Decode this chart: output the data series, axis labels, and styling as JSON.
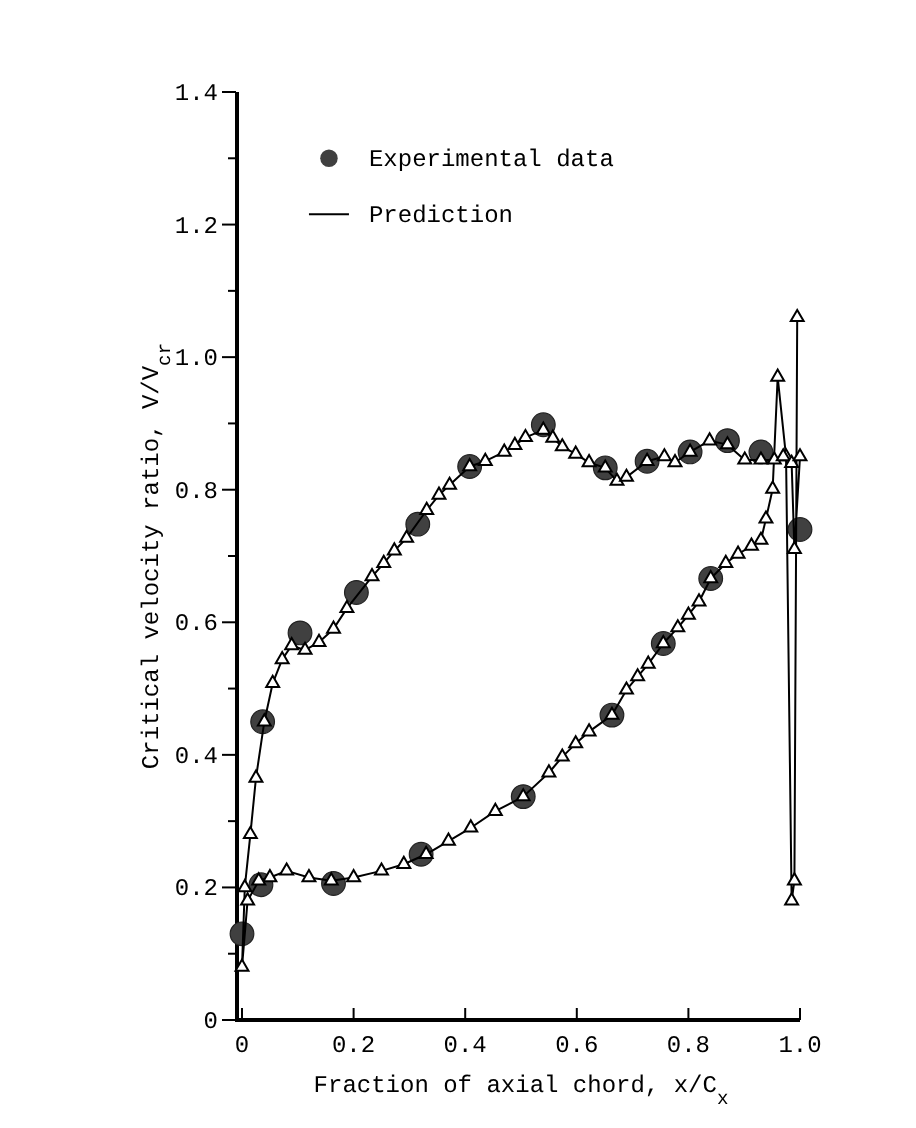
{
  "chart_data": {
    "type": "line",
    "xlabel": "Fraction of axial chord, x/C$_{x}$",
    "ylabel": "Critical velocity ratio, V/V$_{cr}$",
    "xlim": [
      0,
      1
    ],
    "ylim": [
      0,
      1.4
    ],
    "xticks": [
      0,
      0.2,
      0.4,
      0.6,
      0.8,
      {
        "value": 1,
        "label": "1.0"
      }
    ],
    "yticks": [
      0,
      {
        "value": 0.1,
        "label": null
      },
      0.2,
      {
        "value": 0.3,
        "label": null
      },
      0.4,
      {
        "value": 0.5,
        "label": null
      },
      0.6,
      {
        "value": 0.7,
        "label": null
      },
      0.8,
      {
        "value": 0.9,
        "label": null
      },
      {
        "value": 1,
        "label": "1.0"
      },
      {
        "value": 1.1,
        "label": null
      },
      1.2,
      {
        "value": 1.3,
        "label": null
      },
      1.4
    ],
    "grid": false,
    "legend": "top left",
    "series": [
      {
        "name": "Experimental data",
        "type": "scatter",
        "marker": "circle",
        "color": "#404040",
        "x": [
          0,
          0.037,
          0.104,
          0.205,
          0.315,
          0.408,
          0.54,
          0.651,
          0.726,
          0.803,
          0.87,
          0.93,
          0.034,
          0.164,
          0.321,
          0.504,
          0.663,
          0.755,
          0.84,
          1.0
        ],
        "values": [
          0.13,
          0.45,
          0.584,
          0.645,
          0.748,
          0.835,
          0.898,
          0.833,
          0.843,
          0.857,
          0.874,
          0.857,
          0.204,
          0.206,
          0.25,
          0.337,
          0.46,
          0.568,
          0.666,
          0.74
        ]
      },
      {
        "name": "Prediction",
        "marker": "triangle",
        "color": "#000000",
        "x": [
          0.995,
          0.99,
          0.985,
          0.975,
          0.96,
          0.951,
          0.939,
          0.93,
          0.913,
          0.889,
          0.867,
          0.84,
          0.819,
          0.8,
          0.781,
          0.755,
          0.728,
          0.709,
          0.689,
          0.663,
          0.622,
          0.598,
          0.574,
          0.55,
          0.504,
          0.454,
          0.41,
          0.37,
          0.33,
          0.29,
          0.25,
          0.2,
          0.16,
          0.12,
          0.08,
          0.05,
          0.03,
          0.01,
          0,
          0.005,
          0.015,
          0.025,
          0.04,
          0.055,
          0.072,
          0.089,
          0.113,
          0.138,
          0.164,
          0.188,
          0.233,
          0.254,
          0.273,
          0.295,
          0.331,
          0.353,
          0.372,
          0.408,
          0.436,
          0.47,
          0.489,
          0.508,
          0.54,
          0.557,
          0.574,
          0.598,
          0.622,
          0.651,
          0.672,
          0.689,
          0.726,
          0.757,
          0.776,
          0.803,
          0.838,
          0.87,
          0.901,
          0.93,
          0.954,
          0.97,
          0.985,
          0.99,
          1.0
        ],
        "values": [
          1.06,
          0.21,
          0.18,
          0.85,
          0.97,
          0.801,
          0.756,
          0.724,
          0.715,
          0.703,
          0.689,
          0.666,
          0.631,
          0.611,
          0.592,
          0.568,
          0.537,
          0.518,
          0.498,
          0.46,
          0.435,
          0.417,
          0.397,
          0.373,
          0.337,
          0.315,
          0.29,
          0.27,
          0.25,
          0.235,
          0.225,
          0.215,
          0.21,
          0.215,
          0.225,
          0.215,
          0.21,
          0.18,
          0.08,
          0.2,
          0.28,
          0.365,
          0.45,
          0.508,
          0.544,
          0.565,
          0.558,
          0.57,
          0.59,
          0.621,
          0.669,
          0.689,
          0.708,
          0.727,
          0.769,
          0.792,
          0.807,
          0.835,
          0.843,
          0.857,
          0.867,
          0.879,
          0.89,
          0.878,
          0.865,
          0.854,
          0.841,
          0.833,
          0.813,
          0.819,
          0.843,
          0.85,
          0.841,
          0.857,
          0.874,
          0.868,
          0.845,
          0.845,
          0.845,
          0.85,
          0.84,
          0.71,
          0.85
        ]
      }
    ]
  }
}
